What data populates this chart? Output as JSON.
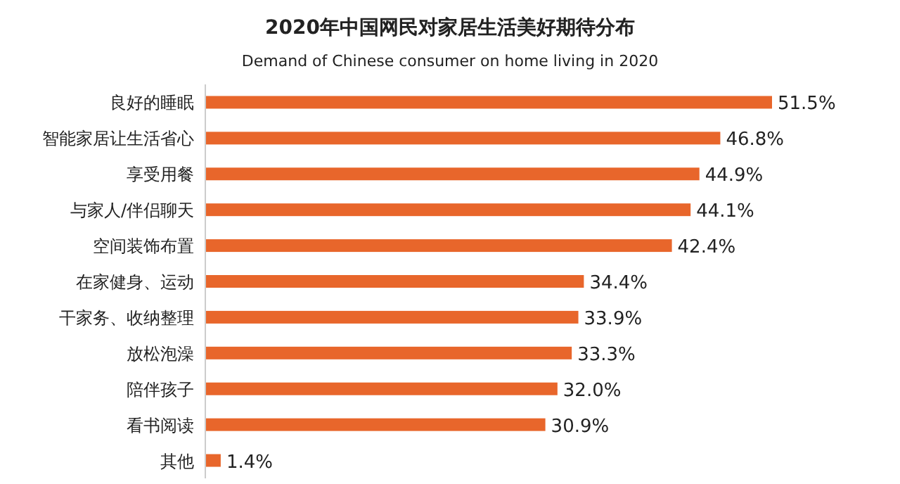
{
  "chart_data": {
    "type": "bar",
    "orientation": "horizontal",
    "title": "2020年中国网民对家居生活美好期待分布",
    "subtitle": "Demand of Chinese consumer on home living in 2020",
    "categories": [
      "良好的睡眠",
      "智能家居让生活省心",
      "享受用餐",
      "与家人/伴侣聊天",
      "空间装饰布置",
      "在家健身、运动",
      "干家务、收纳整理",
      "放松泡澡",
      "陪伴孩子",
      "看书阅读",
      "其他"
    ],
    "values": [
      51.5,
      46.8,
      44.9,
      44.1,
      42.4,
      34.4,
      33.9,
      33.3,
      32.0,
      30.9,
      1.4
    ],
    "value_labels": [
      "51.5%",
      "46.8%",
      "44.9%",
      "44.1%",
      "42.4%",
      "34.4%",
      "33.9%",
      "33.3%",
      "32.0%",
      "30.9%",
      "1.4%"
    ],
    "color": "#e8662b",
    "xlim": [
      0,
      51.5
    ]
  }
}
